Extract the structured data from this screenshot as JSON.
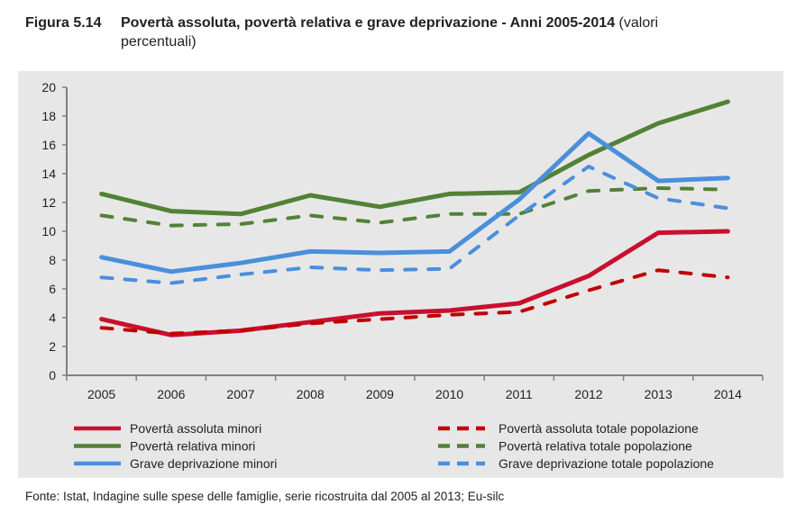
{
  "title": {
    "number": "Figura 5.14",
    "main": "Povertà assoluta, povertà relativa e grave deprivazione - Anni 2005-2014",
    "note_part1": "(valori",
    "note_part2": "percentuali)"
  },
  "source": "Fonte: Istat, Indagine sulle spese delle famiglie, serie ricostruita dal 2005 al 2013; Eu-silc",
  "chart_data": {
    "type": "line",
    "categories": [
      "2005",
      "2006",
      "2007",
      "2008",
      "2009",
      "2010",
      "2011",
      "2012",
      "2013",
      "2014"
    ],
    "ylim": [
      0,
      20
    ],
    "yticks": [
      "0",
      "2",
      "4",
      "6",
      "8",
      "10",
      "12",
      "14",
      "16",
      "18",
      "20"
    ],
    "grid": false,
    "legend_position": "bottom",
    "series": [
      {
        "name": "Povertà assoluta minori",
        "color": "#c8102e",
        "dash": false,
        "values": [
          3.9,
          2.8,
          3.1,
          3.7,
          4.3,
          4.5,
          5.0,
          6.9,
          9.9,
          10.0
        ]
      },
      {
        "name": "Povertà assoluta totale popolazione",
        "color": "#c00000",
        "dash": true,
        "values": [
          3.3,
          2.9,
          3.1,
          3.6,
          3.9,
          4.2,
          4.4,
          5.9,
          7.3,
          6.8
        ]
      },
      {
        "name": "Povertà relativa minori",
        "color": "#538135",
        "dash": false,
        "values": [
          12.6,
          11.4,
          11.2,
          12.5,
          11.7,
          12.6,
          12.7,
          15.3,
          17.5,
          19.0
        ]
      },
      {
        "name": "Povertà relativa totale popolazione",
        "color": "#538135",
        "dash": true,
        "values": [
          11.1,
          10.4,
          10.5,
          11.1,
          10.6,
          11.2,
          11.2,
          12.8,
          13.0,
          12.9
        ]
      },
      {
        "name": "Grave deprivazione minori",
        "color": "#4a8fdb",
        "dash": false,
        "values": [
          8.2,
          7.2,
          7.8,
          8.6,
          8.5,
          8.6,
          12.2,
          16.8,
          13.5,
          13.7
        ]
      },
      {
        "name": "Grave deprivazione totale popolazione",
        "color": "#4a8fdb",
        "dash": true,
        "values": [
          6.8,
          6.4,
          7.0,
          7.5,
          7.3,
          7.4,
          11.1,
          14.5,
          12.3,
          11.6
        ]
      }
    ]
  }
}
